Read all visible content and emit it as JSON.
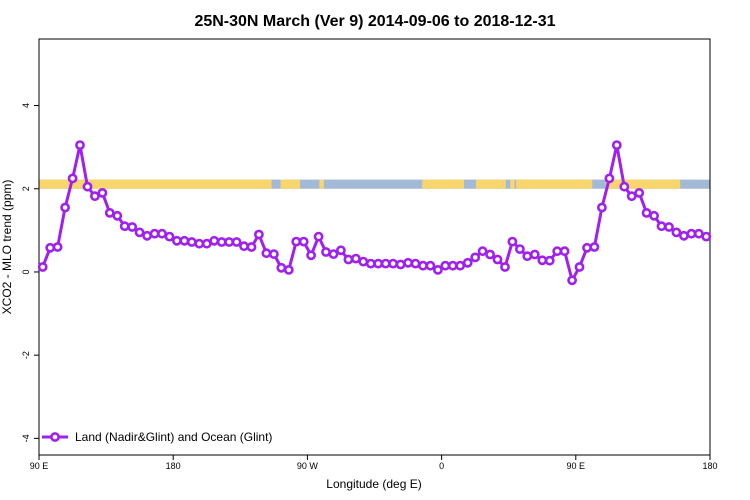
{
  "chart_data": {
    "type": "line",
    "title": "25N-30N March (Ver 9)   2014-09-06 to 2018-12-31",
    "xlabel": "Longitude (deg E)",
    "ylabel": "XCO2 - MLO trend (ppm)",
    "xlim": [
      90,
      540
    ],
    "ylim": [
      -4.4,
      5.6
    ],
    "x_ticks": [
      {
        "value": 90,
        "label": "90 E"
      },
      {
        "value": 180,
        "label": "180"
      },
      {
        "value": 270,
        "label": "90 W"
      },
      {
        "value": 360,
        "label": "0"
      },
      {
        "value": 450,
        "label": "90 E"
      },
      {
        "value": 540,
        "label": "180"
      }
    ],
    "y_ticks": [
      {
        "value": -4,
        "label": "-4"
      },
      {
        "value": -2,
        "label": "-2"
      },
      {
        "value": 0,
        "label": "0"
      },
      {
        "value": 2,
        "label": "2"
      },
      {
        "value": 4,
        "label": "4"
      }
    ],
    "legend_position": "bottom-left",
    "grid": false,
    "series": [
      {
        "name": "Land (Nadir&Glint) and Ocean (Glint)",
        "color": "#a020f0",
        "x": [
          92.5,
          97.5,
          102.5,
          107.5,
          112.5,
          117.5,
          122.5,
          127.5,
          132.5,
          137.5,
          142.5,
          147.5,
          152.5,
          157.5,
          162.5,
          167.5,
          172.5,
          177.5,
          182.5,
          187.5,
          192.5,
          197.5,
          202.5,
          207.5,
          212.5,
          217.5,
          222.5,
          227.5,
          232.5,
          237.5,
          242.5,
          247.5,
          252.5,
          257.5,
          262.5,
          267.5,
          272.5,
          277.5,
          282.5,
          287.5,
          292.5,
          297.5,
          302.5,
          307.5,
          312.5,
          317.5,
          322.5,
          327.5,
          332.5,
          337.5,
          342.5,
          347.5,
          352.5,
          357.5,
          362.5,
          367.5,
          372.5,
          377.5,
          382.5,
          387.5,
          392.5,
          397.5,
          402.5,
          407.5,
          412.5,
          417.5,
          422.5,
          427.5,
          432.5,
          437.5,
          442.5,
          447.5,
          452.5,
          457.5,
          462.5,
          467.5,
          472.5,
          477.5,
          482.5,
          487.5,
          492.5,
          497.5,
          502.5,
          507.5,
          512.5,
          517.5,
          522.5,
          527.5,
          532.5,
          537.5
        ],
        "y": [
          0.12,
          0.58,
          0.6,
          1.55,
          2.25,
          3.05,
          2.05,
          1.82,
          1.9,
          1.42,
          1.35,
          1.1,
          1.08,
          0.95,
          0.87,
          0.92,
          0.92,
          0.85,
          0.75,
          0.75,
          0.72,
          0.68,
          0.68,
          0.75,
          0.72,
          0.72,
          0.72,
          0.62,
          0.6,
          0.9,
          0.45,
          0.43,
          0.1,
          0.05,
          0.73,
          0.73,
          0.4,
          0.85,
          0.48,
          0.43,
          0.52,
          0.3,
          0.32,
          0.25,
          0.2,
          0.2,
          0.2,
          0.2,
          0.18,
          0.22,
          0.2,
          0.15,
          0.15,
          0.05,
          0.15,
          0.15,
          0.15,
          0.22,
          0.35,
          0.5,
          0.42,
          0.3,
          0.12,
          0.73,
          0.55,
          0.38,
          0.42,
          0.28,
          0.27,
          0.5,
          0.5,
          -0.2,
          0.12,
          0.58,
          0.6,
          1.55,
          2.25,
          3.05,
          2.05,
          1.82,
          1.9,
          1.42,
          1.35,
          1.1,
          1.08,
          0.95,
          0.87,
          0.92,
          0.92,
          0.85
        ]
      }
    ],
    "surface_band": {
      "y_range": [
        2.0,
        2.22
      ],
      "land_color": "#f9d56e",
      "ocean_color": "#a3bad6",
      "land_segments": [
        [
          90,
          246
        ],
        [
          252,
          257
        ],
        [
          254,
          265
        ],
        [
          278,
          281
        ],
        [
          347,
          375
        ],
        [
          383,
          403
        ],
        [
          406,
          409
        ],
        [
          410,
          461
        ],
        [
          470,
          520
        ]
      ]
    }
  }
}
